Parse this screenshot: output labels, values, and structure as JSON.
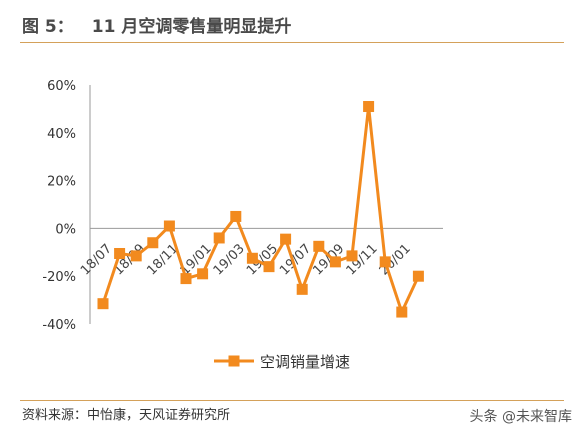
{
  "figure": {
    "number_label": "图 5：",
    "title": "11 月空调零售量明显提升"
  },
  "source_text": "资料来源：中怡康，天风证券研究所",
  "watermark": "头条 @未来智库",
  "colors": {
    "series": "#f28a1e",
    "rule": "#d4a15a",
    "axis": "#9a9a9a"
  },
  "chart_data": {
    "type": "line",
    "title": "",
    "xlabel": "",
    "ylabel": "",
    "ylim": [
      -40,
      60
    ],
    "y_ticks": [
      60,
      40,
      20,
      0,
      -20,
      -40
    ],
    "y_tick_format": "percent",
    "grid": false,
    "legend_position": "bottom-center",
    "x": [
      "18/07",
      "18/08",
      "18/09",
      "18/10",
      "18/11",
      "18/12",
      "19/01",
      "19/02",
      "19/03",
      "19/04",
      "19/05",
      "19/06",
      "19/07",
      "19/08",
      "19/09",
      "19/10",
      "19/11",
      "19/12",
      "20/01",
      "20/02",
      "20/03"
    ],
    "x_tick_labels": [
      "18/07",
      "18/09",
      "18/11",
      "19/01",
      "19/03",
      "19/05",
      "19/07",
      "19/09",
      "19/11",
      "20/01"
    ],
    "series": [
      {
        "name": "空调销量增速",
        "values": [
          -31.5,
          -10.5,
          -11.5,
          -6,
          1,
          -21,
          -19,
          -4,
          5,
          -12.5,
          -16,
          -4.5,
          -25.5,
          -7.5,
          -14,
          -11.5,
          51,
          -14,
          -35,
          -20,
          null
        ]
      }
    ]
  }
}
